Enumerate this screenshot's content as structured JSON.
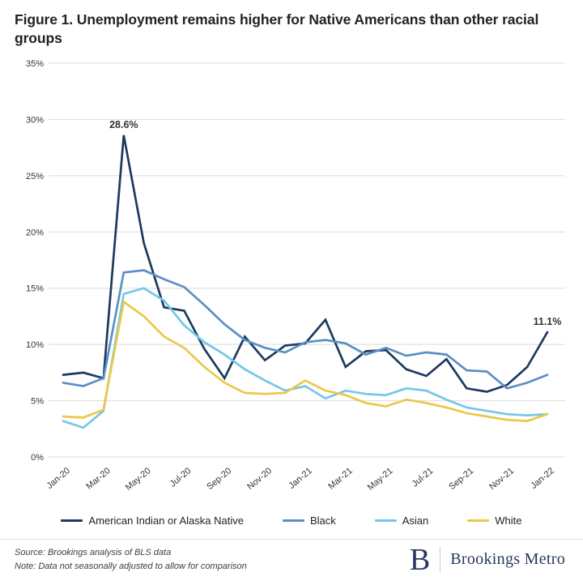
{
  "title": "Figure 1. Unemployment remains higher for Native Americans than other racial groups",
  "chart_data": {
    "type": "line",
    "categories": [
      "Jan-20",
      "Feb-20",
      "Mar-20",
      "Apr-20",
      "May-20",
      "Jun-20",
      "Jul-20",
      "Aug-20",
      "Sep-20",
      "Oct-20",
      "Nov-20",
      "Dec-20",
      "Jan-21",
      "Feb-21",
      "Mar-21",
      "Apr-21",
      "May-21",
      "Jun-21",
      "Jul-21",
      "Aug-21",
      "Sep-21",
      "Oct-21",
      "Nov-21",
      "Dec-21",
      "Jan-22"
    ],
    "x_label_every": 2,
    "series": [
      {
        "name": "American Indian or Alaska Native",
        "color": "#1c3a5e",
        "values": [
          7.3,
          7.5,
          7.0,
          28.6,
          19.0,
          13.3,
          13.0,
          9.6,
          7.0,
          10.7,
          8.6,
          9.9,
          10.1,
          12.2,
          8.0,
          9.4,
          9.5,
          7.8,
          7.2,
          8.7,
          6.1,
          5.8,
          6.4,
          8.0,
          11.1
        ]
      },
      {
        "name": "Black",
        "color": "#5b8fc4",
        "values": [
          6.6,
          6.3,
          7.0,
          16.4,
          16.6,
          15.8,
          15.1,
          13.5,
          11.8,
          10.4,
          9.7,
          9.3,
          10.2,
          10.4,
          10.1,
          9.1,
          9.7,
          9.0,
          9.3,
          9.1,
          7.7,
          7.6,
          6.1,
          6.6,
          7.3
        ]
      },
      {
        "name": "Asian",
        "color": "#74c7e8",
        "values": [
          3.2,
          2.6,
          4.1,
          14.5,
          15.0,
          13.9,
          11.7,
          10.2,
          9.1,
          7.8,
          6.8,
          5.9,
          6.3,
          5.2,
          5.9,
          5.6,
          5.5,
          6.1,
          5.9,
          5.1,
          4.4,
          4.1,
          3.8,
          3.7,
          3.8
        ]
      },
      {
        "name": "White",
        "color": "#e9c84b",
        "values": [
          3.6,
          3.5,
          4.2,
          13.8,
          12.5,
          10.7,
          9.7,
          8.0,
          6.6,
          5.7,
          5.6,
          5.7,
          6.8,
          5.9,
          5.5,
          4.8,
          4.5,
          5.1,
          4.8,
          4.4,
          3.9,
          3.6,
          3.3,
          3.2,
          3.8
        ]
      }
    ],
    "ylim": [
      0,
      35
    ],
    "y_tick_step": 5,
    "y_tick_suffix": "%",
    "grid": "horizontal",
    "legend_position": "bottom",
    "annotations": [
      {
        "label": "28.6%",
        "category": "Apr-20",
        "value": 28.6,
        "series": "American Indian or Alaska Native"
      },
      {
        "label": "11.1%",
        "category": "Jan-22",
        "value": 11.1,
        "series": "American Indian or Alaska Native"
      }
    ]
  },
  "footer": {
    "source": "Source: Brookings analysis of BLS data",
    "note": "Note: Data not seasonally adjusted to allow for comparison",
    "logo_mark": "B",
    "logo_text": "Brookings Metro"
  },
  "colors": {
    "grid": "#dcdcdc",
    "axis_text": "#333333",
    "annotation": "#333333",
    "title_text": "#222222",
    "logo_navy": "#27375f"
  }
}
